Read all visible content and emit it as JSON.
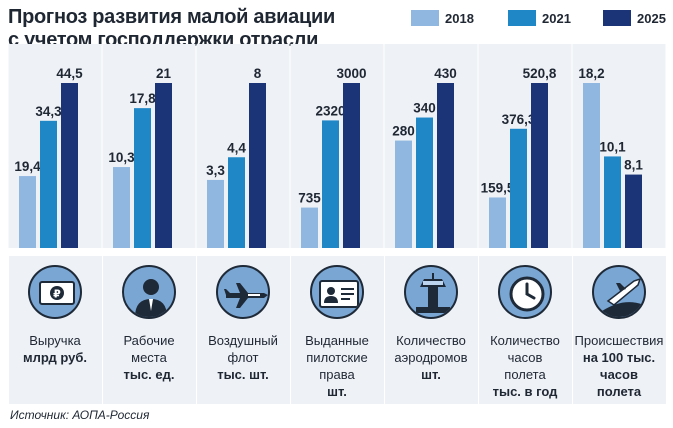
{
  "title": [
    "Прогноз развития малой авиации",
    "с учетом господдержки отрасли"
  ],
  "colors": {
    "2018": "#8fb7e0",
    "2021": "#1f87c6",
    "2025": "#1b3478",
    "panel": "#eef1f6",
    "icon_fill": "#7aa6d4"
  },
  "source": "Источник: АОПА-Россия",
  "chart_data": {
    "type": "bar",
    "series_names": [
      "2018",
      "2021",
      "2025"
    ],
    "groups": [
      {
        "label_lines": [
          "Выручка"
        ],
        "unit_lines": [
          "млрд руб."
        ],
        "icon": "ruble-banknote-icon",
        "values": [
          19.4,
          34.3,
          44.5
        ],
        "labels": [
          "19,4",
          "34,3",
          "44,5"
        ]
      },
      {
        "label_lines": [
          "Рабочие",
          "места"
        ],
        "unit_lines": [
          "тыс. ед."
        ],
        "icon": "worker-person-icon",
        "values": [
          10.3,
          17.8,
          21
        ],
        "labels": [
          "10,3",
          "17,8",
          "21"
        ]
      },
      {
        "label_lines": [
          "Воздушный",
          "флот"
        ],
        "unit_lines": [
          "тыс. шт."
        ],
        "icon": "airplane-icon",
        "values": [
          3.3,
          4.4,
          8
        ],
        "labels": [
          "3,3",
          "4,4",
          "8"
        ]
      },
      {
        "label_lines": [
          "Выданные",
          "пилотские",
          "права"
        ],
        "unit_lines": [
          "шт."
        ],
        "icon": "pilot-license-icon",
        "values": [
          735,
          2320,
          3000
        ],
        "labels": [
          "735",
          "2320",
          "3000"
        ]
      },
      {
        "label_lines": [
          "Количество",
          "аэродромов"
        ],
        "unit_lines": [
          "шт."
        ],
        "icon": "control-tower-icon",
        "values": [
          280,
          340,
          430
        ],
        "labels": [
          "280",
          "340",
          "430"
        ]
      },
      {
        "label_lines": [
          "Количество",
          "часов",
          "полета"
        ],
        "unit_lines": [
          "тыс. в год"
        ],
        "icon": "clock-icon",
        "values": [
          159.5,
          376.3,
          520.8
        ],
        "labels": [
          "159,5",
          "376,3",
          "520,8"
        ]
      },
      {
        "label_lines": [
          "Происшествия"
        ],
        "unit_lines": [
          "на 100 тыс.",
          "часов",
          "полета"
        ],
        "icon": "plane-crash-icon",
        "values": [
          18.2,
          10.1,
          8.1
        ],
        "labels": [
          "18,2",
          "10,1",
          "8,1"
        ]
      }
    ]
  }
}
